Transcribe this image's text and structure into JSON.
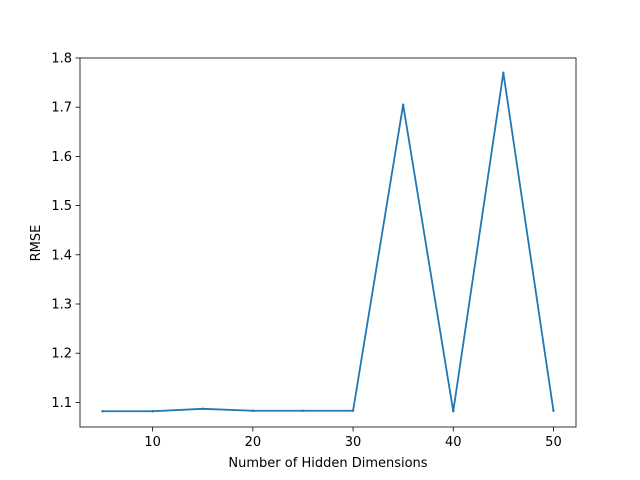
{
  "chart_data": {
    "type": "line",
    "title": "",
    "xlabel": "Number of Hidden Dimensions",
    "ylabel": "RMSE",
    "xlim": [
      2.75,
      52.25
    ],
    "ylim": [
      1.05,
      1.8
    ],
    "x_ticks": [
      10,
      20,
      30,
      40,
      50
    ],
    "y_ticks": [
      1.1,
      1.2,
      1.3,
      1.4,
      1.5,
      1.6,
      1.7,
      1.8
    ],
    "y_tick_labels": [
      "1.1",
      "1.2",
      "1.3",
      "1.4",
      "1.5",
      "1.6",
      "1.7",
      "1.8"
    ],
    "grid": false,
    "series": [
      {
        "color": "#1f77b4",
        "x": [
          5,
          10,
          15,
          20,
          25,
          30,
          35,
          40,
          45,
          50
        ],
        "y": [
          1.082,
          1.082,
          1.087,
          1.083,
          1.083,
          1.083,
          1.705,
          1.082,
          1.77,
          1.083
        ]
      }
    ]
  }
}
